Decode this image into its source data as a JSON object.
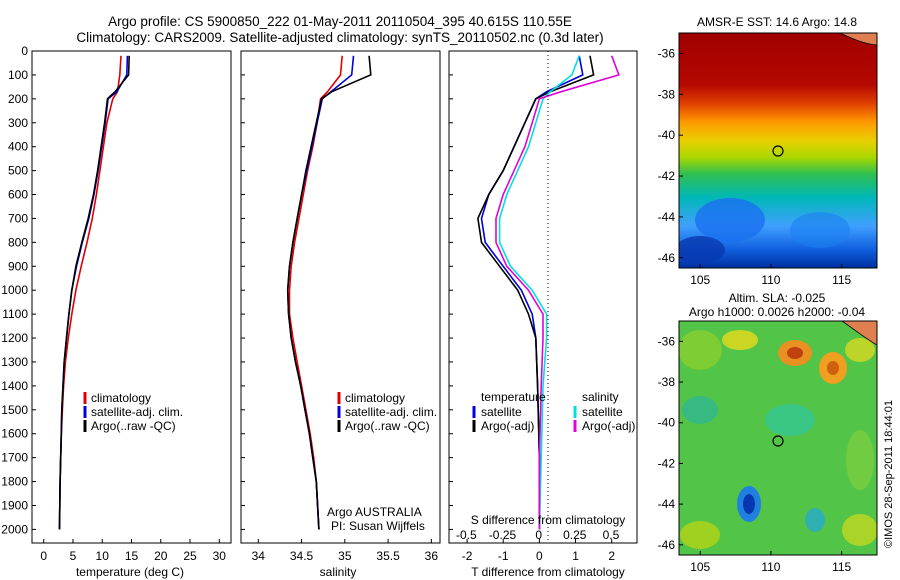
{
  "title_line1": "Argo profile: CS 5900850_222 01-May-2011 20110504_395 40.615S 110.55E",
  "title_line2": "Climatology: CARS2009. Satellite-adjusted climatology: synTS_20110502.nc (0.3d later)",
  "colors": {
    "clim": "#e00000",
    "sat": "#0000e0",
    "argo": "#000000",
    "sal_sat": "#00e0e0",
    "sal_argo": "#e000e0"
  },
  "depth_ticks": [
    "0",
    "100",
    "200",
    "300",
    "400",
    "500",
    "600",
    "700",
    "800",
    "900",
    "1000",
    "1100",
    "1200",
    "1300",
    "1400",
    "1500",
    "1600",
    "1700",
    "1800",
    "1900",
    "2000"
  ],
  "panels": [
    {
      "id": "temperature",
      "xlabel": "temperature (deg C)",
      "xticks": [
        "0",
        "5",
        "10",
        "15",
        "20",
        "25",
        "30"
      ],
      "legend": [
        "climatology",
        "satellite-adj. clim.",
        "Argo(..raw -QC)"
      ]
    },
    {
      "id": "salinity",
      "xlabel": "salinity",
      "xticks": [
        "34",
        "34.5",
        "35",
        "35.5",
        "36"
      ],
      "legend": [
        "climatology",
        "satellite-adj. clim.",
        "Argo(..raw -QC)"
      ],
      "credit1": "Argo AUSTRALIA",
      "credit2": "PI: Susan Wijffels"
    },
    {
      "id": "difference",
      "xlabel": "T difference from climatology",
      "top_label": "S difference from climatology",
      "xticks": [
        "-2",
        "-1",
        "0",
        "1",
        "2"
      ],
      "xticks_top": [
        "-0.5",
        "-0.25",
        "0",
        "0.25",
        "0.5"
      ],
      "legend_temp_head": "temperature",
      "legend_sal_head": "salinity",
      "legend_items": [
        "satellite",
        "Argo(-adj)",
        "satellite",
        "Argo(-adj)"
      ]
    }
  ],
  "maps": [
    {
      "id": "sst",
      "title": "AMSR-E SST: 14.6 Argo: 14.8",
      "yticks": [
        "-36",
        "-38",
        "-40",
        "-42",
        "-44",
        "-46"
      ],
      "xticks": [
        "105",
        "110",
        "115"
      ]
    },
    {
      "id": "sla",
      "title1": "Altim. SLA: -0.025",
      "title2": "Argo h1000: 0.0026 h2000: -0.04",
      "yticks": [
        "-36",
        "-38",
        "-40",
        "-42",
        "-44",
        "-46"
      ],
      "xticks": [
        "105",
        "110",
        "115"
      ]
    }
  ],
  "imos": "©IMOS 28-Sep-2011 18:44:01",
  "chart_data": [
    {
      "type": "line",
      "title": "",
      "xlabel": "temperature (deg C)",
      "ylabel": "",
      "xlim": [
        -2,
        32
      ],
      "ylim": [
        2050,
        0
      ],
      "series": [
        {
          "name": "climatology",
          "x": [
            13.2,
            13.0,
            12.6,
            11.8,
            10.8,
            10.2,
            9.6,
            9.0,
            8.3,
            7.4,
            6.4,
            5.5,
            4.8,
            4.2,
            3.7,
            3.4,
            3.2,
            3.0,
            2.9,
            2.8,
            2.7
          ],
          "y": [
            20,
            100,
            170,
            200,
            300,
            400,
            500,
            600,
            700,
            800,
            900,
            1000,
            1100,
            1200,
            1300,
            1400,
            1500,
            1600,
            1700,
            1800,
            2000
          ]
        },
        {
          "name": "satellite-adj. clim.",
          "x": [
            14.3,
            14.2,
            12.5,
            11.0,
            10.5,
            9.9,
            9.3,
            8.6,
            7.7,
            6.6,
            5.6,
            4.8,
            4.3,
            3.9,
            3.5,
            3.3,
            3.1,
            3.0,
            2.9,
            2.8,
            2.7
          ],
          "y": [
            20,
            100,
            170,
            200,
            300,
            400,
            500,
            600,
            700,
            800,
            900,
            1000,
            1100,
            1200,
            1300,
            1400,
            1500,
            1600,
            1700,
            1800,
            2000
          ]
        },
        {
          "name": "Argo(..raw -QC)",
          "x": [
            14.6,
            14.5,
            12.2,
            10.9,
            10.4,
            9.8,
            9.2,
            8.5,
            7.6,
            6.5,
            5.5,
            4.8,
            4.3,
            3.9,
            3.5,
            3.3,
            3.1,
            3.0,
            2.9,
            2.8,
            2.7
          ],
          "y": [
            20,
            100,
            170,
            200,
            300,
            400,
            500,
            600,
            700,
            800,
            900,
            1000,
            1100,
            1200,
            1300,
            1400,
            1500,
            1600,
            1700,
            1800,
            2000
          ]
        }
      ]
    },
    {
      "type": "line",
      "title": "",
      "xlabel": "salinity",
      "ylabel": "",
      "xlim": [
        33.8,
        36.1
      ],
      "ylim": [
        2050,
        0
      ],
      "series": [
        {
          "name": "climatology",
          "x": [
            34.97,
            34.95,
            34.8,
            34.72,
            34.68,
            34.63,
            34.57,
            34.52,
            34.47,
            34.42,
            34.38,
            34.36,
            34.36,
            34.4,
            34.45,
            34.5,
            34.55,
            34.6,
            34.64,
            34.67,
            34.7
          ],
          "y": [
            20,
            100,
            170,
            200,
            300,
            400,
            500,
            600,
            700,
            800,
            900,
            1000,
            1100,
            1200,
            1300,
            1400,
            1500,
            1600,
            1700,
            1800,
            2000
          ]
        },
        {
          "name": "satellite-adj. clim.",
          "x": [
            35.1,
            35.08,
            34.84,
            34.74,
            34.68,
            34.62,
            34.56,
            34.5,
            34.45,
            34.4,
            34.36,
            34.34,
            34.35,
            34.38,
            34.43,
            34.49,
            34.54,
            34.59,
            34.63,
            34.67,
            34.7
          ],
          "y": [
            20,
            100,
            170,
            200,
            300,
            400,
            500,
            600,
            700,
            800,
            900,
            1000,
            1100,
            1200,
            1300,
            1400,
            1500,
            1600,
            1700,
            1800,
            2000
          ]
        },
        {
          "name": "Argo(..raw -QC)",
          "x": [
            35.28,
            35.3,
            34.85,
            34.73,
            34.67,
            34.61,
            34.55,
            34.5,
            34.45,
            34.4,
            34.36,
            34.34,
            34.35,
            34.38,
            34.43,
            34.49,
            34.54,
            34.59,
            34.63,
            34.67,
            34.7
          ],
          "y": [
            20,
            100,
            170,
            200,
            300,
            400,
            500,
            600,
            700,
            800,
            900,
            1000,
            1100,
            1200,
            1300,
            1400,
            1500,
            1600,
            1700,
            1800,
            2000
          ]
        }
      ]
    },
    {
      "type": "line",
      "title": "",
      "xlabel": "T difference from climatology",
      "ylabel": "",
      "xlim": [
        -2.5,
        2.7
      ],
      "ylim": [
        2050,
        0
      ],
      "series": [
        {
          "name": "temperature satellite",
          "x": [
            1.1,
            1.2,
            0.2,
            -0.1,
            -0.4,
            -0.7,
            -1.0,
            -1.4,
            -1.6,
            -1.5,
            -1.0,
            -0.5,
            -0.2,
            -0.1,
            -0.05,
            0,
            0
          ],
          "y": [
            20,
            100,
            170,
            200,
            300,
            400,
            500,
            600,
            700,
            800,
            900,
            1000,
            1100,
            1200,
            1400,
            1700,
            2000
          ]
        },
        {
          "name": "temperature Argo(-adj)",
          "x": [
            1.4,
            1.5,
            0.3,
            -0.1,
            -0.4,
            -0.7,
            -1.0,
            -1.4,
            -1.7,
            -1.6,
            -1.1,
            -0.6,
            -0.3,
            -0.1,
            -0.05,
            0,
            0
          ],
          "y": [
            20,
            100,
            170,
            200,
            300,
            400,
            500,
            600,
            700,
            800,
            900,
            1000,
            1100,
            1200,
            1400,
            1700,
            2000
          ]
        },
        {
          "name": "salinity satellite",
          "x": [
            1.1,
            0.9,
            0.3,
            0.1,
            -0.1,
            -0.3,
            -0.6,
            -0.9,
            -1.1,
            -1.1,
            -0.8,
            -0.2,
            0.2,
            0.2,
            0.1,
            0.05,
            0
          ],
          "y": [
            20,
            100,
            170,
            200,
            300,
            400,
            500,
            600,
            700,
            800,
            900,
            1000,
            1100,
            1200,
            1400,
            1700,
            2000
          ]
        },
        {
          "name": "salinity Argo(-adj)",
          "x": [
            2.0,
            2.2,
            0.6,
            0.0,
            -0.2,
            -0.4,
            -0.7,
            -1.0,
            -1.2,
            -1.2,
            -0.9,
            -0.3,
            0.1,
            0.1,
            0.05,
            0,
            0
          ],
          "y": [
            20,
            100,
            170,
            200,
            300,
            400,
            500,
            600,
            700,
            800,
            900,
            1000,
            1100,
            1200,
            1400,
            1700,
            2000
          ]
        }
      ]
    }
  ]
}
